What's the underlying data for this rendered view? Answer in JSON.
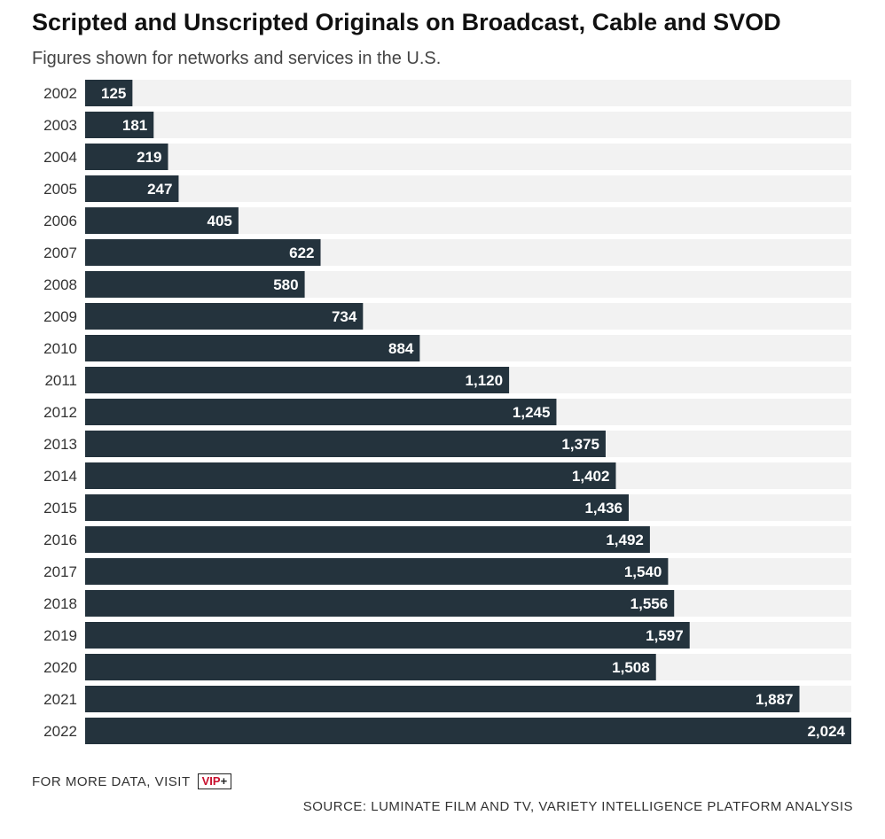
{
  "title": "Scripted and Unscripted Originals on Broadcast, Cable and SVOD",
  "subtitle": "Figures shown for networks and services in the U.S.",
  "footer": {
    "more_data_text": "FOR MORE DATA, VISIT",
    "badge_text": "VIP",
    "badge_plus": "+",
    "source_text": "SOURCE: LUMINATE FILM AND TV, VARIETY INTELLIGENCE PLATFORM ANALYSIS"
  },
  "colors": {
    "bar": "#24333d",
    "track": "#f2f2f2",
    "label": "#ffffff",
    "category_text": "#333333",
    "badge_red": "#c8102e"
  },
  "chart_data": {
    "type": "bar",
    "orientation": "horizontal",
    "categories": [
      "2002",
      "2003",
      "2004",
      "2005",
      "2006",
      "2007",
      "2008",
      "2009",
      "2010",
      "2011",
      "2012",
      "2013",
      "2014",
      "2015",
      "2016",
      "2017",
      "2018",
      "2019",
      "2020",
      "2021",
      "2022"
    ],
    "values": [
      125,
      181,
      219,
      247,
      405,
      622,
      580,
      734,
      884,
      1120,
      1245,
      1375,
      1402,
      1436,
      1492,
      1540,
      1556,
      1597,
      1508,
      1887,
      2024
    ],
    "value_labels": [
      "125",
      "181",
      "219",
      "247",
      "405",
      "622",
      "580",
      "734",
      "884",
      "1,120",
      "1,245",
      "1,375",
      "1,402",
      "1,436",
      "1,492",
      "1,540",
      "1,556",
      "1,597",
      "1,508",
      "1,887",
      "2,024"
    ],
    "xlim": [
      0,
      2024
    ],
    "grid": false,
    "legend": "none"
  }
}
